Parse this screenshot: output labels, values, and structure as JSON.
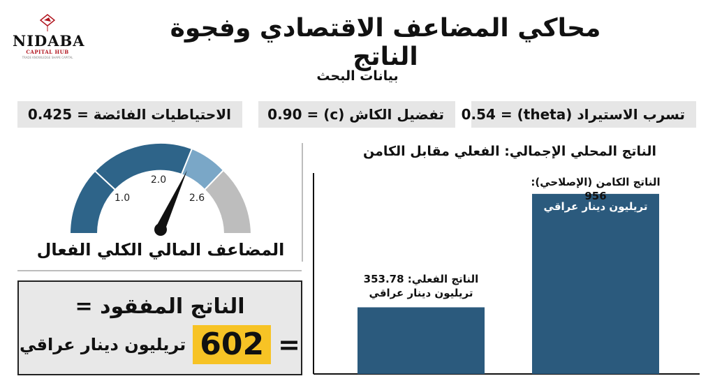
{
  "logo": {
    "name": "NIDABA",
    "sub": "CAPITAL HUB",
    "tagline": "TRADE KNOWLEDGE SHAPE CAPITAL"
  },
  "title": "محاكي المضاعف الاقتصادي وفجوة الناتج",
  "subtitle": "بيانات البحث",
  "params": [
    {
      "label": "تسرب الاستيراد (theta) = 0.54"
    },
    {
      "label": "تفضيل الكاش (c) = 0.90"
    },
    {
      "label": "الاحتياطيات الفائضة = 0.425"
    }
  ],
  "gauge": {
    "caption": "المضاعف المالي الكلي الفعال",
    "ticks": [
      "1.0",
      "2.0",
      "2.6"
    ],
    "colors": {
      "dark": "#2e6489",
      "light": "#7aa7c7",
      "grey": "#bdbdbd",
      "needle": "#111111"
    }
  },
  "lost_output": {
    "title": "الناتج المفقود =",
    "equals": "=",
    "value": "602",
    "unit": "تريليون دينار عراقي",
    "highlight": "#f7c325"
  },
  "chart_data": {
    "type": "bar",
    "title": "الناتج المحلي الإجمالي: الفعلي مقابل الكامن",
    "categories": [
      "الناتج الفعلي",
      "الناتج الكامن (الإصلاحي)"
    ],
    "values": [
      353.78,
      956
    ],
    "labels": [
      {
        "line1": "الناتج الفعلي: 353.78",
        "line2": "تريليون دينار عراقي"
      },
      {
        "line1": "الناتج الكامن (الإصلاحي): 956",
        "line2": "تريليون دينار عراقي"
      }
    ],
    "ylim": [
      0,
      1000
    ],
    "bar_color": "#2b5a7d",
    "grid": false
  }
}
